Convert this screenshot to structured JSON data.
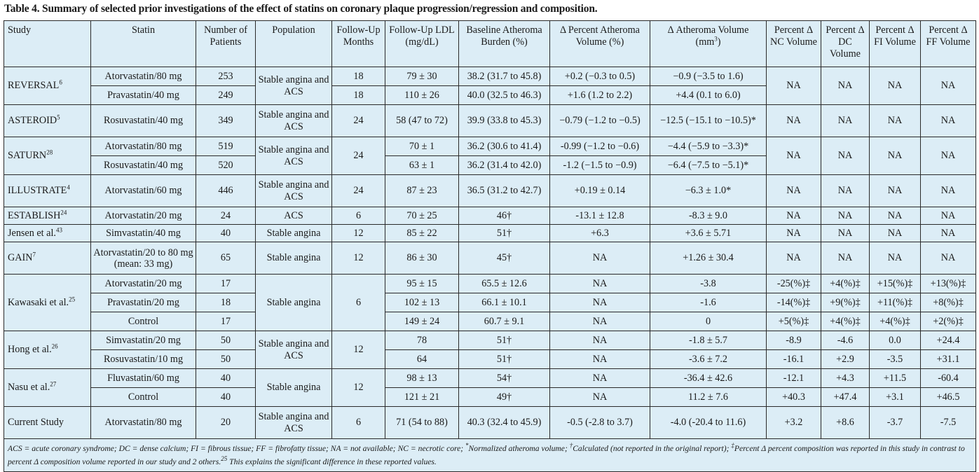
{
  "title": "Table 4. Summary of selected prior investigations of the effect of statins on coronary plaque progression/regression and composition.",
  "columns": [
    "Study",
    "Statin",
    "Number of Patients",
    "Population",
    "Follow-Up Months",
    "Follow-Up LDL (mg/dL)",
    "Baseline Atheroma Burden (%)",
    "Δ Percent Atheroma Volume (%)",
    "Δ Atheroma Volume (mm³)",
    "Percent Δ NC Volume",
    "Percent Δ DC Volume",
    "Percent Δ FI Volume",
    "Percent Δ FF Volume"
  ],
  "studies": [
    {
      "name": "REVERSAL",
      "ref": "6",
      "population": "Stable angina and ACS",
      "months": [
        "18",
        "18"
      ],
      "merged": [
        "NA",
        "NA",
        "NA",
        "NA"
      ],
      "arms": [
        {
          "statin": "Atorvastatin/80 mg",
          "n": "253",
          "ldl": "79 ± 30",
          "baseline": "38.2 (31.7 to 45.8)",
          "pav": "+0.2 (−0.3 to 0.5)",
          "av": "−0.9 (−3.5 to 1.6)"
        },
        {
          "statin": "Pravastatin/40 mg",
          "n": "249",
          "ldl": "110 ± 26",
          "baseline": "40.0 (32.5 to 46.3)",
          "pav": "+1.6 (1.2 to 2.2)",
          "av": "+4.4 (0.1 to 6.0)"
        }
      ]
    },
    {
      "name": "ASTEROID",
      "ref": "5",
      "population": "Stable angina and ACS",
      "months": "24",
      "arms": [
        {
          "statin": "Rosuvastatin/40 mg",
          "n": "349",
          "ldl": "58 (47 to 72)",
          "baseline": "39.9 (33.8 to 45.3)",
          "pav": "−0.79 (−1.2 to −0.5)",
          "av": "−12.5 (−15.1 to −10.5)*",
          "nc": "NA",
          "dc": "NA",
          "fi": "NA",
          "ff": "NA"
        }
      ]
    },
    {
      "name": "SATURN",
      "ref": "28",
      "population": "Stable angina and ACS",
      "months": "24",
      "merged": [
        "NA",
        "NA",
        "NA",
        "NA"
      ],
      "arms": [
        {
          "statin": "Atorvastatin/80 mg",
          "n": "519",
          "ldl": "70 ± 1",
          "baseline": "36.2 (30.6 to 41.4)",
          "pav": "-0.99 (−1.2 to −0.6)",
          "av": "−4.4 (−5.9 to −3.3)*"
        },
        {
          "statin": "Rosuvastatin/40 mg",
          "n": "520",
          "ldl": "63 ± 1",
          "baseline": "36.2 (31.4 to 42.0)",
          "pav": "-1.2 (−1.5 to −0.9)",
          "av": "−6.4 (−7.5 to −5.1)*"
        }
      ]
    },
    {
      "name": "ILLUSTRATE",
      "ref": "4",
      "population": "Stable angina and ACS",
      "months": "24",
      "arms": [
        {
          "statin": "Atorvastatin/60 mg",
          "n": "446",
          "ldl": "87 ± 23",
          "baseline": "36.5 (31.2 to 42.7)",
          "pav": "+0.19 ± 0.14",
          "av": "−6.3 ± 1.0*",
          "nc": "NA",
          "dc": "NA",
          "fi": "NA",
          "ff": "NA"
        }
      ]
    },
    {
      "name": "ESTABLISH",
      "ref": "24",
      "population": "ACS",
      "months": "6",
      "arms": [
        {
          "statin": "Atorvastatin/20 mg",
          "n": "24",
          "ldl": "70 ± 25",
          "baseline": "46†",
          "pav": "-13.1 ± 12.8",
          "av": "-8.3 ± 9.0",
          "nc": "NA",
          "dc": "NA",
          "fi": "NA",
          "ff": "NA"
        }
      ]
    },
    {
      "name": "Jensen et al.",
      "ref": "43",
      "population": "Stable angina",
      "months": "12",
      "arms": [
        {
          "statin": "Simvastatin/40 mg",
          "n": "40",
          "ldl": "85 ± 22",
          "baseline": "51†",
          "pav": "+6.3",
          "av": "+3.6 ± 5.71",
          "nc": "NA",
          "dc": "NA",
          "fi": "NA",
          "ff": "NA"
        }
      ]
    },
    {
      "name": "GAIN",
      "ref": "7",
      "population": "Stable angina",
      "months": "12",
      "arms": [
        {
          "statin": "Atorvastatin/20 to 80 mg (mean: 33 mg)",
          "n": "65",
          "ldl": "86 ± 30",
          "baseline": "45†",
          "pav": "NA",
          "av": "+1.26 ± 30.4",
          "nc": "NA",
          "dc": "NA",
          "fi": "NA",
          "ff": "NA"
        }
      ]
    },
    {
      "name": "Kawasaki et al.",
      "ref": "25",
      "population": "Stable angina",
      "months": "6",
      "arms": [
        {
          "statin": "Atorvastatin/20 mg",
          "n": "17",
          "ldl": "95 ± 15",
          "baseline": "65.5 ± 12.6",
          "pav": "NA",
          "av": "-3.8",
          "nc": "-25(%)‡",
          "dc": "+4(%)‡",
          "fi": "+15(%)‡",
          "ff": "+13(%)‡"
        },
        {
          "statin": "Pravastatin/20 mg",
          "n": "18",
          "ldl": "102 ± 13",
          "baseline": "66.1 ± 10.1",
          "pav": "NA",
          "av": "-1.6",
          "nc": "-14(%)‡",
          "dc": "+9(%)‡",
          "fi": "+11(%)‡",
          "ff": "+8(%)‡"
        },
        {
          "statin": "Control",
          "n": "17",
          "ldl": "149 ± 24",
          "baseline": "60.7 ± 9.1",
          "pav": "NA",
          "av": "0",
          "nc": "+5(%)‡",
          "dc": "+4(%)‡",
          "fi": "+4(%)‡",
          "ff": "+2(%)‡"
        }
      ]
    },
    {
      "name": "Hong et al.",
      "ref": "26",
      "population": "Stable angina and ACS",
      "months": "12",
      "arms": [
        {
          "statin": "Simvastatin/20 mg",
          "n": "50",
          "ldl": "78",
          "baseline": "51†",
          "pav": "NA",
          "av": "-1.8 ± 5.7",
          "nc": "-8.9",
          "dc": "-4.6",
          "fi": "0.0",
          "ff": "+24.4"
        },
        {
          "statin": "Rosuvastatin/10 mg",
          "n": "50",
          "ldl": "64",
          "baseline": "51†",
          "pav": "NA",
          "av": "-3.6 ± 7.2",
          "nc": "-16.1",
          "dc": "+2.9",
          "fi": "-3.5",
          "ff": "+31.1"
        }
      ]
    },
    {
      "name": "Nasu et al.",
      "ref": "27",
      "population": "Stable angina",
      "months": "12",
      "arms": [
        {
          "statin": "Fluvastatin/60 mg",
          "n": "40",
          "ldl": "98 ± 13",
          "baseline": "54†",
          "pav": "NA",
          "av": "-36.4 ± 42.6",
          "nc": "-12.1",
          "dc": "+4.3",
          "fi": "+11.5",
          "ff": "-60.4"
        },
        {
          "statin": "Control",
          "n": "40",
          "ldl": "121 ± 21",
          "baseline": "49†",
          "pav": "NA",
          "av": "11.2 ± 7.6",
          "nc": "+40.3",
          "dc": "+47.4",
          "fi": "+3.1",
          "ff": "+46.5"
        }
      ]
    },
    {
      "name": "Current Study",
      "ref": "",
      "population": "Stable angina and ACS",
      "months": "6",
      "arms": [
        {
          "statin": "Atorvastatin/80 mg",
          "n": "20",
          "ldl": "71 (54 to 88)",
          "baseline": "40.3 (32.4 to 45.9)",
          "pav": "-0.5 (-2.8 to 3.7)",
          "av": "-4.0 (-20.4 to 11.6)",
          "nc": "+3.2",
          "dc": "+8.6",
          "fi": "-3.7",
          "ff": "-7.5"
        }
      ]
    }
  ],
  "footnote": [
    {
      "t": "ACS = acute coronary syndrome; DC = dense calcium; FI = fibrous tissue; FF = fibrofatty tissue; NA = not available; NC = necrotic core;  "
    },
    {
      "t": "*",
      "sup": true
    },
    {
      "t": "Normalized atheroma volume; "
    },
    {
      "t": "†",
      "sup": true
    },
    {
      "t": "Calculated (not reported in the original report); "
    },
    {
      "t": "‡",
      "sup": true
    },
    {
      "t": "Percent Δ percent composition was reported in this study in contrast to percent Δ composition volume reported in our study and 2 others."
    },
    {
      "t": "25",
      "sup": true
    },
    {
      "t": " This explains the significant difference in these reported values."
    }
  ]
}
